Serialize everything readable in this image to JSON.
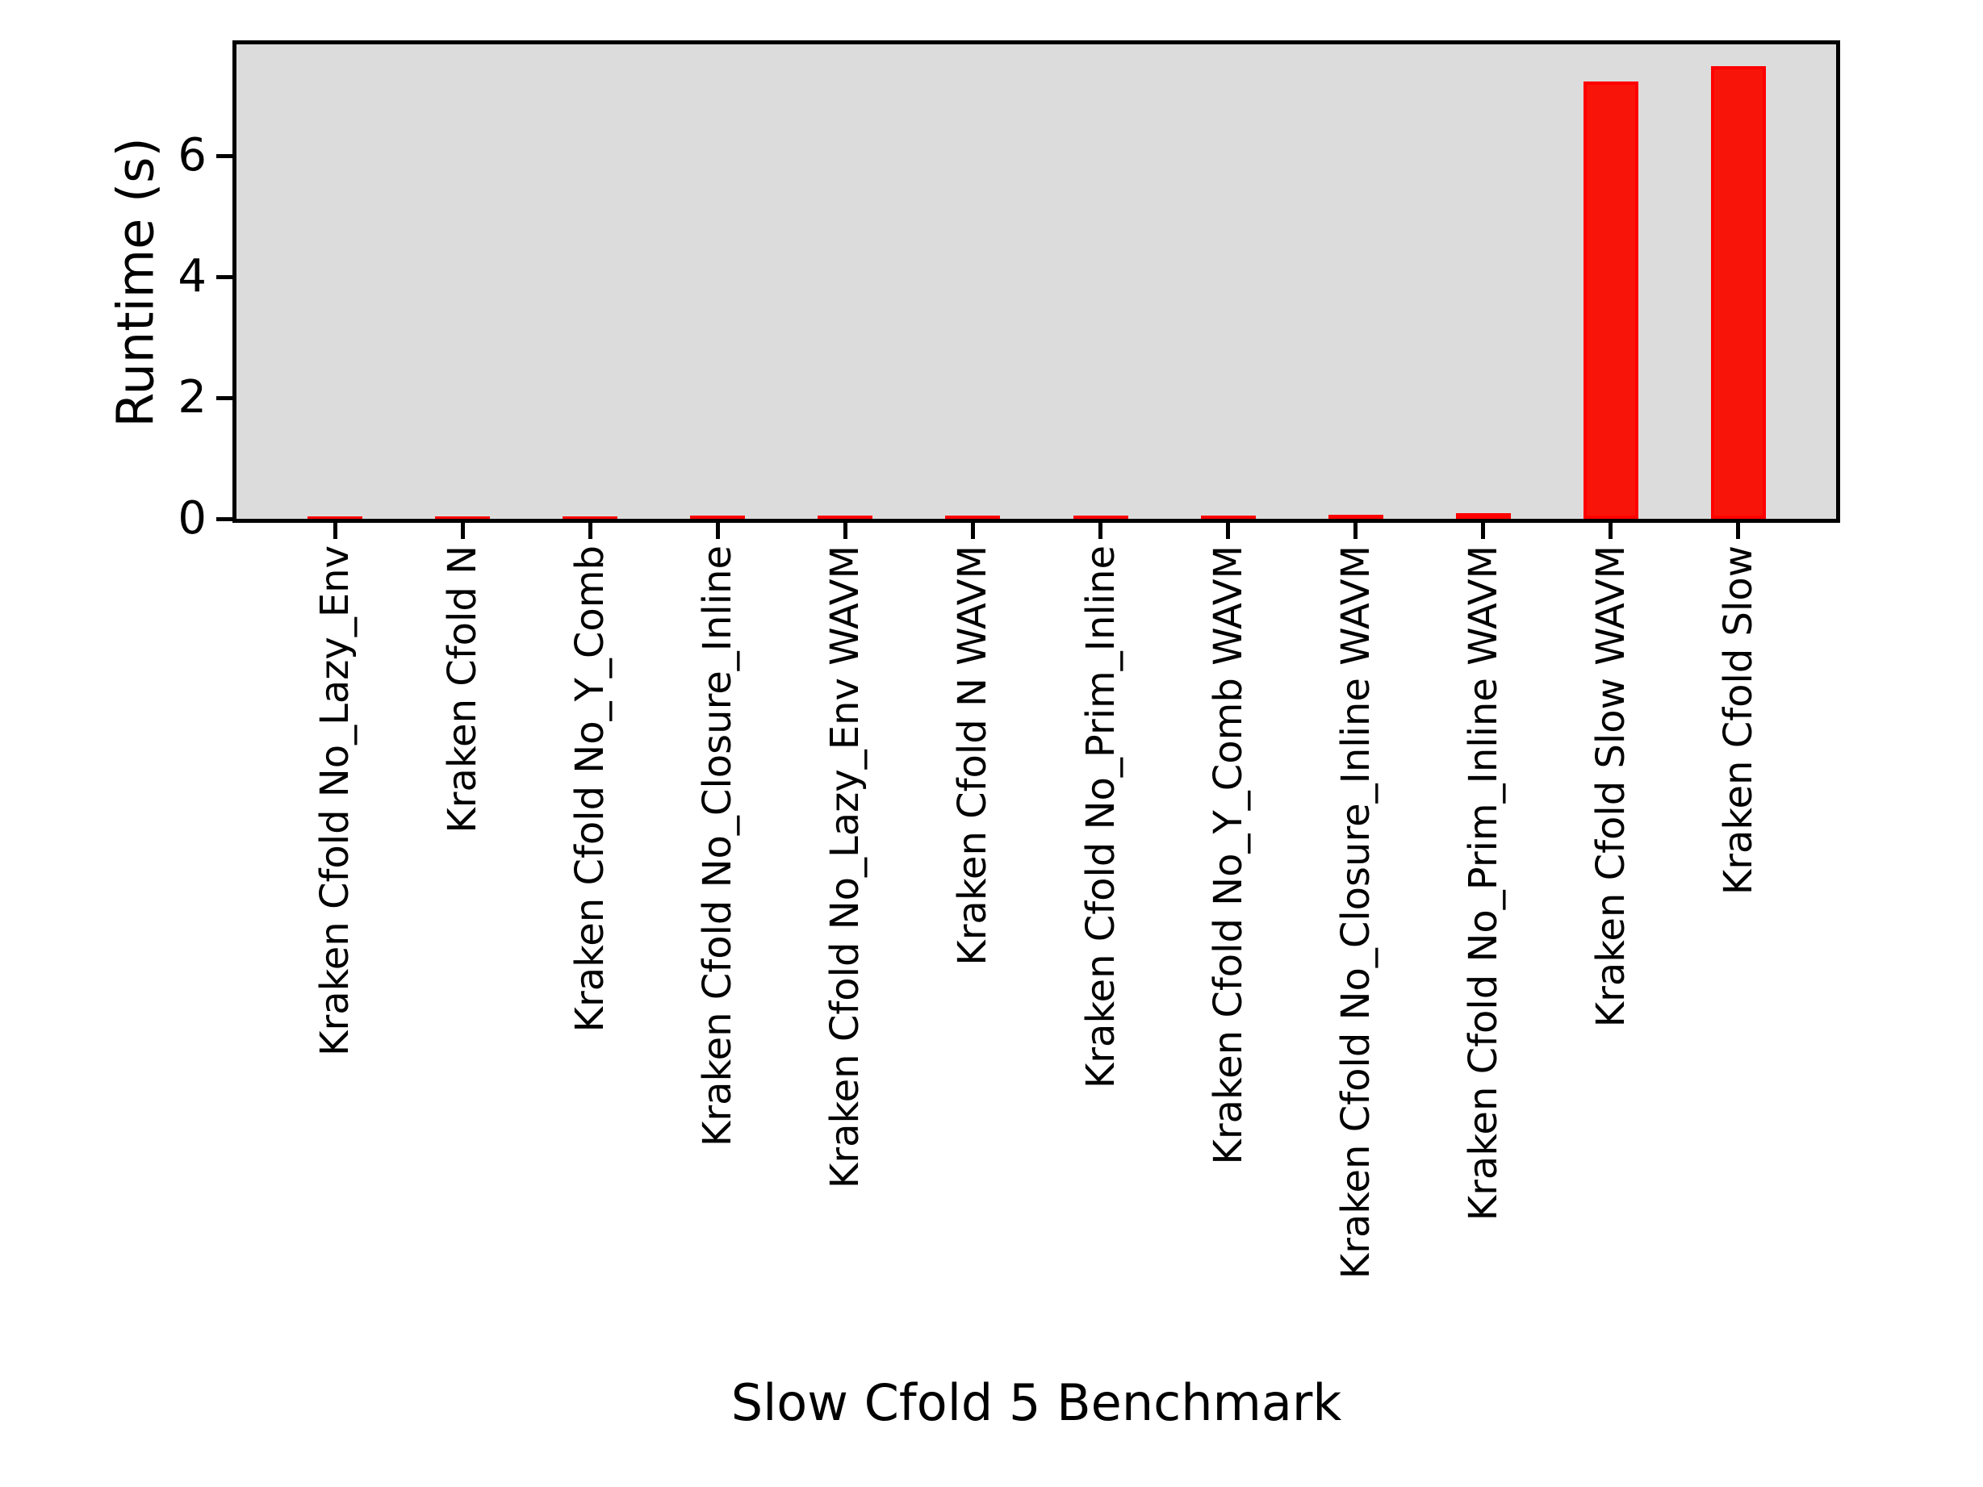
{
  "chart_data": {
    "type": "bar",
    "title": "",
    "xlabel": "Slow Cfold 5 Benchmark",
    "ylabel": "Runtime (s)",
    "categories": [
      "Kraken Cfold No_Lazy_Env",
      "Kraken Cfold N",
      "Kraken Cfold No_Y_Comb",
      "Kraken Cfold No_Closure_Inline",
      "Kraken Cfold No_Lazy_Env WAVM",
      "Kraken Cfold N WAVM",
      "Kraken Cfold No_Prim_Inline",
      "Kraken Cfold No_Y_Comb WAVM",
      "Kraken Cfold No_Closure_Inline WAVM",
      "Kraken Cfold No_Prim_Inline WAVM",
      "Kraken Cfold Slow WAVM",
      "Kraken Cfold Slow"
    ],
    "values": [
      0.035,
      0.035,
      0.04,
      0.05,
      0.05,
      0.055,
      0.055,
      0.055,
      0.07,
      0.09,
      7.23,
      7.48
    ],
    "yticks": [
      0,
      2,
      4,
      6
    ],
    "ylim": [
      0,
      7.85
    ],
    "grid": false,
    "legend": "empty rounded box, upper right inside plot",
    "colors": {
      "bar_fill": "#f91409",
      "bar_edge": "#ff0000",
      "plot_background": "#dcdcdc",
      "spine": "#000000",
      "text": "#000000",
      "figure_background": "#ffffff"
    }
  }
}
